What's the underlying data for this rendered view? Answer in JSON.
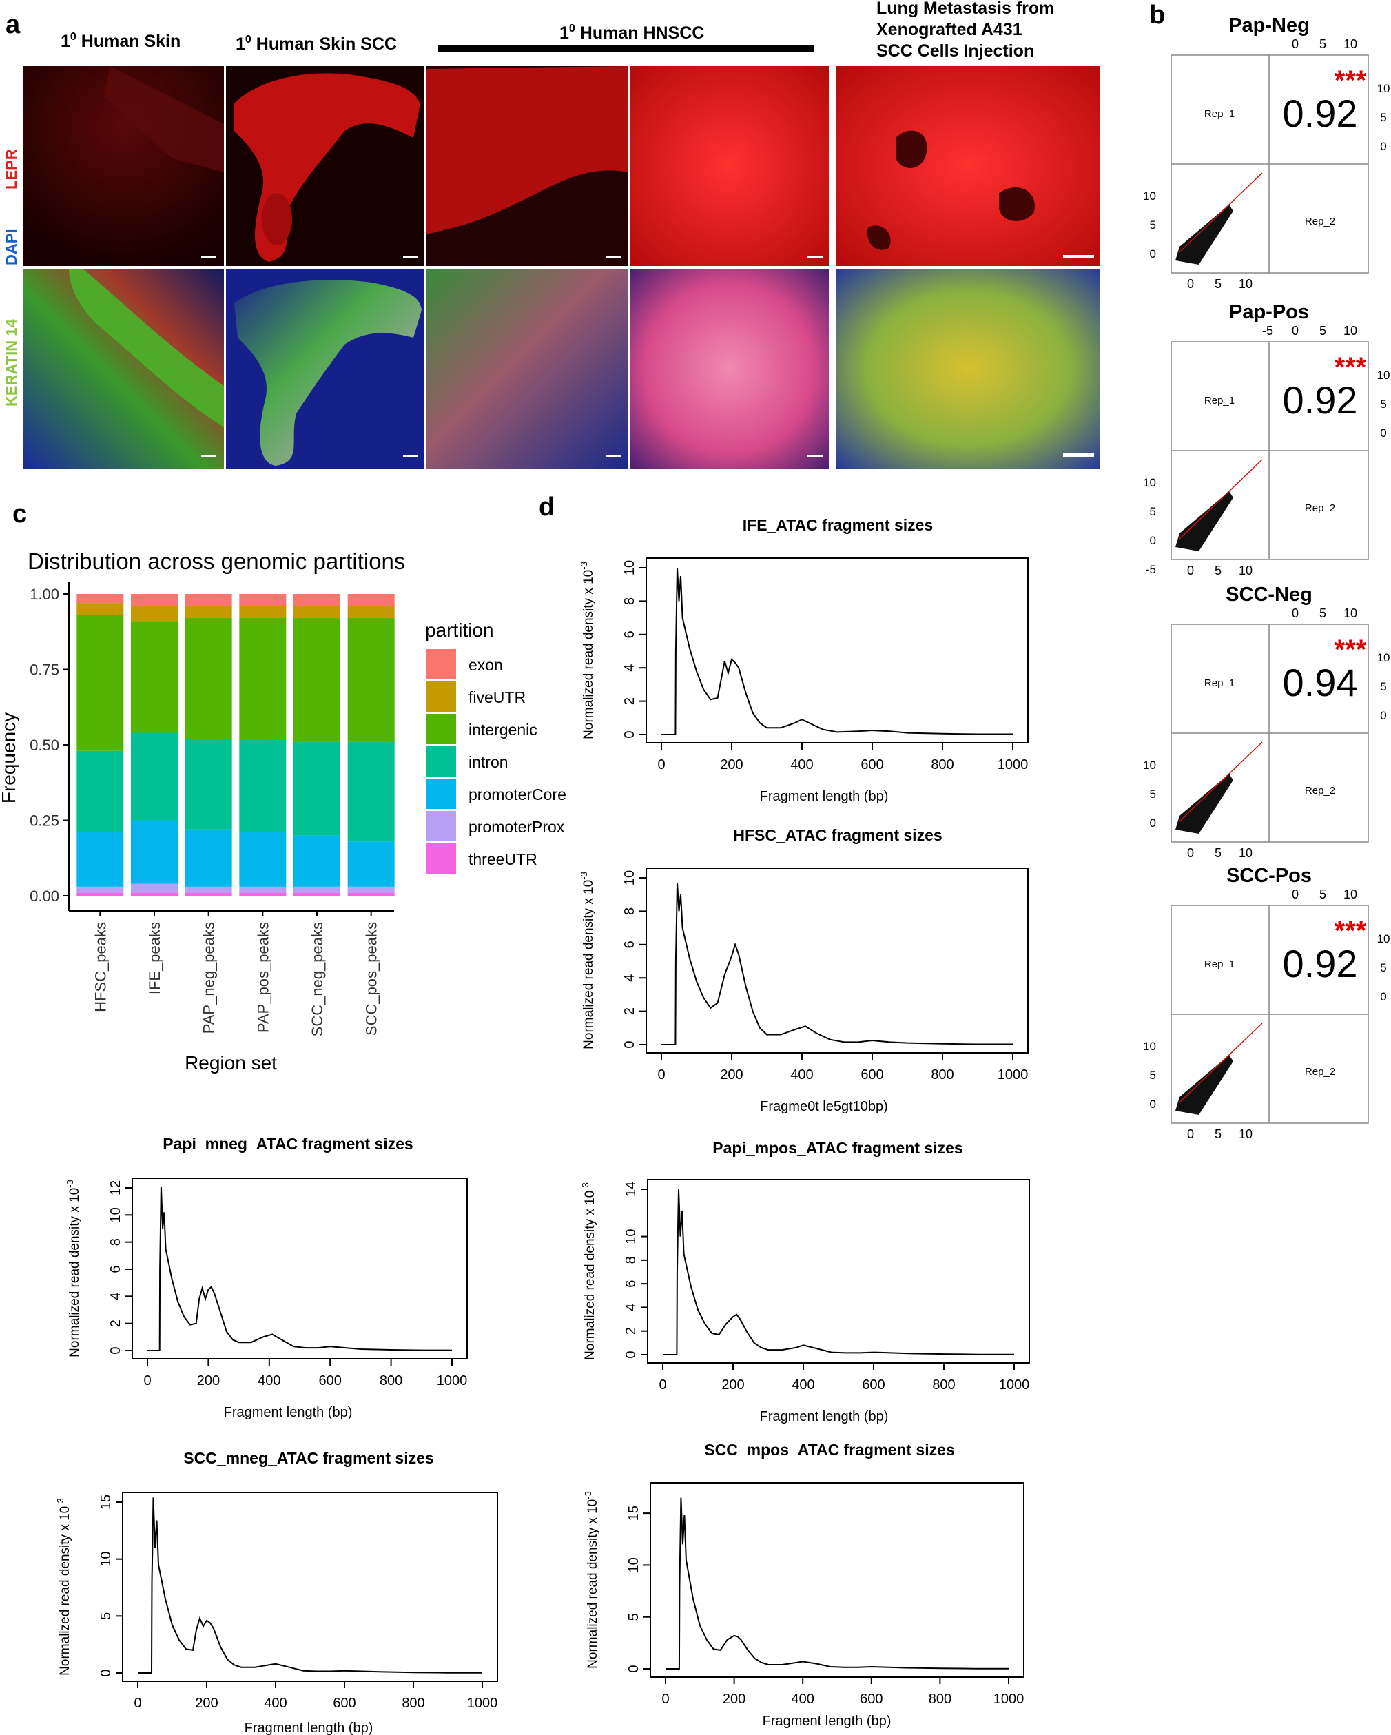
{
  "panels": {
    "a": "a",
    "b": "b",
    "c": "c",
    "d": "d"
  },
  "panel_a": {
    "col_titles": [
      {
        "sup": "0",
        "text": "Human Skin"
      },
      {
        "sup": "0",
        "text": "Human Skin SCC"
      },
      {
        "sup": "0",
        "text": "Human HNSCC"
      }
    ],
    "col_prefix": "1",
    "lung_title": [
      "Lung Metastasis from",
      "Xenografted A431",
      "SCC Cells Injection"
    ],
    "row_labels": {
      "lepr": "LEPR",
      "dapi": "DAPI",
      "keratin": "KERATIN 14"
    },
    "colors": {
      "lepr": "#e02020",
      "dapi": "#1a5fd0",
      "keratin": "#8cc63f"
    }
  },
  "chart_data": [
    {
      "type": "bar",
      "id": "partition",
      "title": "Distribution across genomic partitions",
      "xlabel": "Region set",
      "ylabel": "Frequency",
      "ylim": [
        0,
        1
      ],
      "yticks": [
        "0.00",
        "0.25",
        "0.50",
        "0.75",
        "1.00"
      ],
      "categories": [
        "HFSC_peaks",
        "IFE_peaks",
        "PAP_neg_peaks",
        "PAP_pos_peaks",
        "SCC_neg_peaks",
        "SCC_pos_peaks"
      ],
      "legend_title": "partition",
      "series": [
        {
          "name": "threeUTR",
          "color": "#f564e3",
          "values": [
            0.01,
            0.01,
            0.01,
            0.01,
            0.01,
            0.01
          ]
        },
        {
          "name": "promoterProx",
          "color": "#b79ff5",
          "values": [
            0.02,
            0.03,
            0.02,
            0.02,
            0.02,
            0.02
          ]
        },
        {
          "name": "promoterCore",
          "color": "#00b6eb",
          "values": [
            0.18,
            0.21,
            0.19,
            0.18,
            0.17,
            0.15
          ]
        },
        {
          "name": "intron",
          "color": "#00c094",
          "values": [
            0.27,
            0.29,
            0.3,
            0.31,
            0.31,
            0.33
          ]
        },
        {
          "name": "intergenic",
          "color": "#53b400",
          "values": [
            0.45,
            0.37,
            0.4,
            0.4,
            0.41,
            0.41
          ]
        },
        {
          "name": "fiveUTR",
          "color": "#c49a00",
          "values": [
            0.04,
            0.05,
            0.04,
            0.04,
            0.04,
            0.04
          ]
        },
        {
          "name": "exon",
          "color": "#f8766d",
          "values": [
            0.03,
            0.04,
            0.04,
            0.04,
            0.04,
            0.04
          ]
        }
      ],
      "legend_labels": [
        "exon",
        "fiveUTR",
        "intergenic",
        "intron",
        "promoterCore",
        "promoterProx",
        "threeUTR"
      ]
    },
    {
      "type": "line",
      "id": "ife",
      "title": "IFE_ATAC fragment sizes",
      "xlabel": "Fragment length (bp)",
      "ylabel": "Normalized read density x 10",
      "ylabel_exp": "-3",
      "xlim": [
        0,
        1000
      ],
      "ylim": [
        0,
        10
      ],
      "xticks": [
        0,
        200,
        400,
        600,
        800,
        1000
      ],
      "yticks": [
        0,
        2,
        4,
        6,
        8,
        10
      ],
      "x": [
        0,
        40,
        41,
        45,
        50,
        55,
        60,
        80,
        100,
        120,
        140,
        160,
        170,
        180,
        190,
        200,
        210,
        220,
        240,
        260,
        280,
        300,
        340,
        380,
        400,
        420,
        460,
        500,
        560,
        600,
        650,
        700,
        800,
        900,
        1000
      ],
      "y": [
        0,
        0,
        5,
        10,
        8,
        9.5,
        7,
        5.2,
        3.8,
        2.7,
        2.1,
        2.2,
        3.3,
        4.4,
        3.7,
        4.5,
        4.3,
        4.0,
        2.5,
        1.3,
        0.7,
        0.4,
        0.4,
        0.7,
        0.9,
        0.7,
        0.3,
        0.15,
        0.2,
        0.25,
        0.2,
        0.1,
        0.05,
        0.02,
        0.02
      ]
    },
    {
      "type": "line",
      "id": "hfsc",
      "title": "HFSC_ATAC fragment sizes",
      "xlabel": "Fragme0t le5gt10bp)",
      "ylabel": "Normalized read density x 10",
      "ylabel_exp": "-3",
      "xlim": [
        0,
        1000
      ],
      "ylim": [
        0,
        10
      ],
      "xticks": [
        0,
        200,
        400,
        600,
        800,
        1000
      ],
      "yticks": [
        0,
        2,
        4,
        6,
        8,
        10
      ],
      "x": [
        0,
        40,
        41,
        45,
        50,
        55,
        60,
        80,
        100,
        120,
        140,
        160,
        180,
        200,
        210,
        220,
        240,
        260,
        280,
        300,
        340,
        380,
        410,
        440,
        480,
        520,
        560,
        600,
        650,
        700,
        800,
        900,
        1000
      ],
      "y": [
        0,
        0,
        5,
        9.7,
        8,
        9,
        7,
        5.2,
        3.8,
        2.8,
        2.2,
        2.5,
        4.2,
        5.3,
        6.0,
        5.4,
        3.5,
        2.0,
        1.0,
        0.6,
        0.6,
        0.9,
        1.1,
        0.7,
        0.3,
        0.15,
        0.15,
        0.25,
        0.15,
        0.1,
        0.05,
        0.02,
        0.02
      ]
    },
    {
      "type": "line",
      "id": "papmneg",
      "title": "Papi_mneg_ATAC fragment sizes",
      "xlabel": "Fragment length (bp)",
      "ylabel": "Normalized read density x 10",
      "ylabel_exp": "-3",
      "xlim": [
        0,
        1000
      ],
      "ylim": [
        0,
        12
      ],
      "xticks": [
        0,
        200,
        400,
        600,
        800,
        1000
      ],
      "yticks": [
        0,
        2,
        4,
        6,
        8,
        10,
        12
      ],
      "x": [
        0,
        40,
        41,
        45,
        50,
        55,
        60,
        80,
        100,
        120,
        140,
        160,
        170,
        180,
        190,
        200,
        210,
        220,
        240,
        260,
        280,
        300,
        340,
        380,
        410,
        440,
        480,
        520,
        560,
        600,
        650,
        700,
        800,
        900,
        1000
      ],
      "y": [
        0,
        0,
        6,
        12.1,
        9,
        10.2,
        7.5,
        5.3,
        3.6,
        2.5,
        1.9,
        2.0,
        3.8,
        4.6,
        3.8,
        4.5,
        4.7,
        4.2,
        2.8,
        1.4,
        0.8,
        0.6,
        0.6,
        1.0,
        1.2,
        0.8,
        0.3,
        0.2,
        0.2,
        0.3,
        0.2,
        0.1,
        0.05,
        0.02,
        0.02
      ]
    },
    {
      "type": "line",
      "id": "papmpos",
      "title": "Papi_mpos_ATAC fragment sizes",
      "xlabel": "Fragment length (bp)",
      "ylabel": "Normalized read density x 10",
      "ylabel_exp": "-3",
      "xlim": [
        0,
        1000
      ],
      "ylim": [
        0,
        14
      ],
      "xticks": [
        0,
        200,
        400,
        600,
        800,
        1000
      ],
      "yticks": [
        0,
        2,
        4,
        6,
        8,
        10,
        14
      ],
      "x": [
        0,
        40,
        41,
        45,
        50,
        55,
        60,
        80,
        100,
        120,
        140,
        160,
        180,
        200,
        210,
        220,
        240,
        260,
        280,
        300,
        340,
        380,
        400,
        440,
        480,
        520,
        560,
        600,
        650,
        700,
        800,
        900,
        1000
      ],
      "y": [
        0,
        0,
        7,
        14,
        10,
        12.2,
        8.5,
        5.8,
        3.8,
        2.6,
        1.8,
        1.7,
        2.6,
        3.2,
        3.4,
        3.0,
        1.9,
        1.0,
        0.6,
        0.4,
        0.4,
        0.6,
        0.8,
        0.5,
        0.2,
        0.15,
        0.15,
        0.2,
        0.15,
        0.1,
        0.05,
        0.02,
        0.02
      ]
    },
    {
      "type": "line",
      "id": "sccmneg",
      "title": "SCC_mneg_ATAC fragment sizes",
      "xlabel": "Fragment length (bp)",
      "ylabel": "Normalized read density x 10",
      "ylabel_exp": "-3",
      "xlim": [
        0,
        1000
      ],
      "ylim": [
        0,
        15
      ],
      "xticks": [
        0,
        200,
        400,
        600,
        800,
        1000
      ],
      "yticks": [
        0,
        5,
        10,
        15
      ],
      "x": [
        0,
        40,
        41,
        45,
        50,
        55,
        60,
        80,
        100,
        120,
        140,
        160,
        170,
        180,
        190,
        200,
        210,
        220,
        240,
        260,
        280,
        300,
        340,
        380,
        400,
        440,
        480,
        520,
        560,
        600,
        650,
        700,
        800,
        900,
        1000
      ],
      "y": [
        0,
        0,
        8,
        15.4,
        11,
        13.4,
        9.5,
        6.5,
        4.2,
        2.9,
        2.1,
        2.0,
        3.8,
        4.8,
        4.1,
        4.6,
        4.4,
        3.9,
        2.3,
        1.2,
        0.7,
        0.5,
        0.5,
        0.7,
        0.8,
        0.5,
        0.2,
        0.15,
        0.15,
        0.2,
        0.15,
        0.1,
        0.05,
        0.02,
        0.02
      ]
    },
    {
      "type": "line",
      "id": "sccmpos",
      "title": "SCC_mpos_ATAC fragment sizes",
      "xlabel": "Fragment length (bp)",
      "ylabel": "Normalized read density x 10",
      "ylabel_exp": "-3",
      "xlim": [
        0,
        1000
      ],
      "ylim": [
        0,
        17
      ],
      "xticks": [
        0,
        200,
        400,
        600,
        800,
        1000
      ],
      "yticks": [
        0,
        5,
        10,
        15
      ],
      "x": [
        0,
        40,
        41,
        45,
        50,
        55,
        60,
        80,
        100,
        120,
        140,
        160,
        180,
        200,
        210,
        220,
        240,
        260,
        280,
        300,
        340,
        380,
        400,
        440,
        480,
        520,
        560,
        600,
        650,
        700,
        800,
        900,
        1000
      ],
      "y": [
        0,
        0,
        8,
        16.5,
        12,
        14.8,
        10.5,
        6.8,
        4.2,
        2.8,
        1.9,
        1.8,
        2.8,
        3.2,
        3.1,
        2.8,
        1.8,
        1.0,
        0.6,
        0.4,
        0.4,
        0.6,
        0.7,
        0.5,
        0.2,
        0.15,
        0.15,
        0.2,
        0.15,
        0.1,
        0.05,
        0.02,
        0.02
      ]
    },
    {
      "type": "scatter",
      "id": "papneg",
      "title": "Pap-Neg",
      "correlation": "0.92",
      "stars": "***",
      "rep1": "Rep_1",
      "rep2": "Rep_2",
      "top_ticks": [
        "0",
        "5",
        "10"
      ],
      "right_ticks": [
        "10",
        "5",
        "0"
      ],
      "left_ticks": [
        "10",
        "5",
        "0"
      ],
      "bottom_ticks": [
        "0",
        "5",
        "10"
      ],
      "x": [
        0,
        2,
        4,
        6,
        8,
        10
      ],
      "y": [
        0,
        2,
        4,
        6,
        8,
        10
      ]
    },
    {
      "type": "scatter",
      "id": "pappos",
      "title": "Pap-Pos",
      "correlation": "0.92",
      "stars": "***",
      "rep1": "Rep_1",
      "rep2": "Rep_2",
      "top_ticks": [
        "-5",
        "0",
        "5",
        "10"
      ],
      "right_ticks": [
        "10",
        "5",
        "0"
      ],
      "left_ticks": [
        "10",
        "5",
        "0",
        "-5"
      ],
      "bottom_ticks": [
        "0",
        "5",
        "10"
      ],
      "x": [
        0,
        2,
        4,
        6,
        8,
        10
      ],
      "y": [
        0,
        2,
        4,
        6,
        8,
        10
      ]
    },
    {
      "type": "scatter",
      "id": "sccneg",
      "title": "SCC-Neg",
      "correlation": "0.94",
      "stars": "***",
      "rep1": "Rep_1",
      "rep2": "Rep_2",
      "top_ticks": [
        "0",
        "5",
        "10"
      ],
      "right_ticks": [
        "10",
        "5",
        "0"
      ],
      "left_ticks": [
        "10",
        "5",
        "0"
      ],
      "bottom_ticks": [
        "0",
        "5",
        "10"
      ],
      "x": [
        0,
        2,
        4,
        6,
        8,
        10
      ],
      "y": [
        0,
        2,
        4,
        6,
        8,
        10
      ]
    },
    {
      "type": "scatter",
      "id": "sccpos",
      "title": "SCC-Pos",
      "correlation": "0.92",
      "stars": "***",
      "rep1": "Rep_1",
      "rep2": "Rep_2",
      "top_ticks": [
        "0",
        "5",
        "10"
      ],
      "right_ticks": [
        "10",
        "5",
        "0"
      ],
      "left_ticks": [
        "10",
        "5",
        "0"
      ],
      "bottom_ticks": [
        "0",
        "5",
        "10"
      ],
      "x": [
        0,
        2,
        4,
        6,
        8,
        10
      ],
      "y": [
        0,
        2,
        4,
        6,
        8,
        10
      ]
    }
  ]
}
